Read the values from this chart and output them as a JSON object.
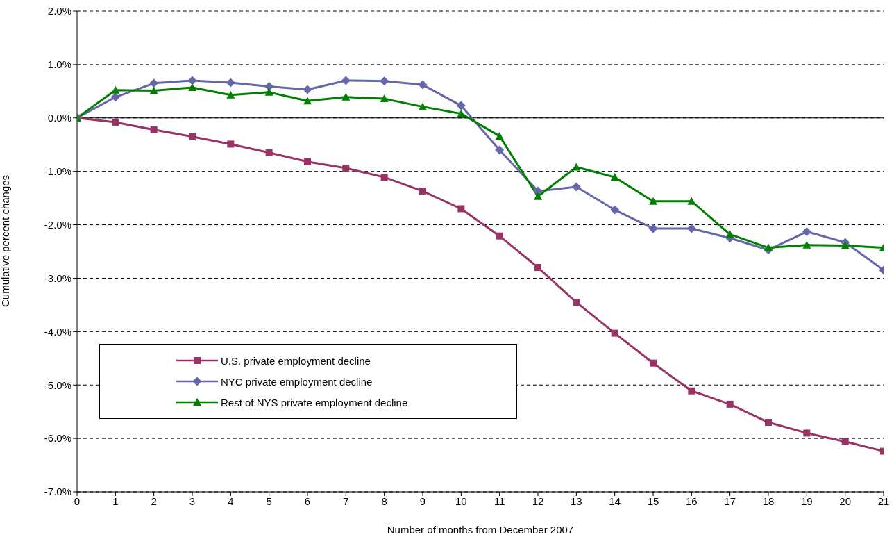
{
  "chart_data": {
    "type": "line",
    "xlabel": "Number of months from December 2007",
    "ylabel": "Cumulative percent changes",
    "x": [
      0,
      1,
      2,
      3,
      4,
      5,
      6,
      7,
      8,
      9,
      10,
      11,
      12,
      13,
      14,
      15,
      16,
      17,
      18,
      19,
      20,
      21
    ],
    "xlim": [
      0,
      21
    ],
    "xticks": [
      0,
      1,
      2,
      3,
      4,
      5,
      6,
      7,
      8,
      9,
      10,
      11,
      12,
      13,
      14,
      15,
      16,
      17,
      18,
      19,
      20,
      21
    ],
    "ylim": [
      -7,
      2
    ],
    "yticks": [
      {
        "value": 2,
        "label": "2.0%"
      },
      {
        "value": 1,
        "label": "1.0%"
      },
      {
        "value": 0,
        "label": "0.0%"
      },
      {
        "value": -1,
        "label": "-1.0%"
      },
      {
        "value": -2,
        "label": "-2.0%"
      },
      {
        "value": -3,
        "label": "-3.0%"
      },
      {
        "value": -4,
        "label": "-4.0%"
      },
      {
        "value": -5,
        "label": "-5.0%"
      },
      {
        "value": -6,
        "label": "-6.0%"
      },
      {
        "value": -7,
        "label": "-7.0%"
      }
    ],
    "grid": "y",
    "legend": "bottom left",
    "line_style": "solid",
    "ref_lines": [
      {
        "axis": "y",
        "value": 0
      }
    ],
    "series": [
      {
        "name": "U.S. private employment decline",
        "color": "#993366",
        "marker": "square",
        "values": [
          0,
          -0.08,
          -0.22,
          -0.35,
          -0.49,
          -0.65,
          -0.82,
          -0.94,
          -1.11,
          -1.37,
          -1.7,
          -2.21,
          -2.8,
          -3.45,
          -4.03,
          -4.59,
          -5.11,
          -5.36,
          -5.7,
          -5.9,
          -6.06,
          -6.24
        ]
      },
      {
        "name": "NYC private employment decline",
        "color": "#6666aa",
        "marker": "diamond",
        "values": [
          0,
          0.39,
          0.65,
          0.7,
          0.66,
          0.59,
          0.53,
          0.7,
          0.69,
          0.62,
          0.23,
          -0.6,
          -1.37,
          -1.29,
          -1.72,
          -2.07,
          -2.07,
          -2.25,
          -2.47,
          -2.13,
          -2.33,
          -2.85
        ]
      },
      {
        "name": "Rest of NYS private employment decline",
        "color": "#008000",
        "marker": "triangle",
        "values": [
          0,
          0.52,
          0.51,
          0.57,
          0.43,
          0.48,
          0.32,
          0.39,
          0.36,
          0.21,
          0.08,
          -0.34,
          -1.47,
          -0.92,
          -1.11,
          -1.56,
          -1.56,
          -2.18,
          -2.43,
          -2.38,
          -2.39,
          -2.43
        ]
      }
    ]
  }
}
